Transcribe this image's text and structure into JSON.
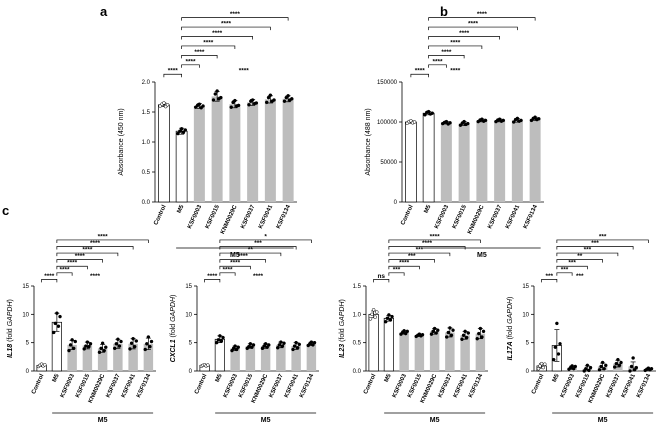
{
  "chart_data": [
    {
      "type": "bar",
      "panel": "a",
      "ylabel": "Absorbance (450 nm)",
      "ylim": [
        0,
        2.0
      ],
      "yticks": [
        0,
        0.5,
        1.0,
        1.5,
        2.0
      ],
      "ytick_labels": [
        "0.0",
        "0.5",
        "1.0",
        "1.5",
        "2.0"
      ],
      "categories": [
        "Control",
        "M5",
        "KSF0003",
        "KSF0015",
        "KNM0029C",
        "KSF0037",
        "KSF0041",
        "KSF0134"
      ],
      "values": [
        1.62,
        1.18,
        1.6,
        1.76,
        1.63,
        1.66,
        1.71,
        1.72
      ],
      "errors": [
        0.03,
        0.05,
        0.04,
        0.08,
        0.06,
        0.05,
        0.06,
        0.05
      ],
      "points": [
        [
          1.6,
          1.63,
          1.65,
          1.59,
          1.62
        ],
        [
          1.14,
          1.18,
          1.22,
          1.16,
          1.2
        ],
        [
          1.58,
          1.61,
          1.63,
          1.57,
          1.6
        ],
        [
          1.7,
          1.8,
          1.85,
          1.72,
          1.74
        ],
        [
          1.58,
          1.66,
          1.69,
          1.6,
          1.61
        ],
        [
          1.62,
          1.68,
          1.7,
          1.64,
          1.65
        ],
        [
          1.66,
          1.74,
          1.78,
          1.68,
          1.7
        ],
        [
          1.68,
          1.74,
          1.77,
          1.7,
          1.72
        ]
      ],
      "group_label": "M5",
      "comparisons": [
        {
          "from": 0,
          "to": 1,
          "label": "****"
        },
        {
          "from": 1,
          "to": 2,
          "label": "****"
        },
        {
          "from": 1,
          "to": 3,
          "label": "****"
        },
        {
          "from": 1,
          "to": 4,
          "label": "****"
        },
        {
          "from": 1,
          "to": 5,
          "label": "****"
        },
        {
          "from": 1,
          "to": 6,
          "label": "****"
        },
        {
          "from": 1,
          "to": 7,
          "label": "****"
        }
      ],
      "extra_label": {
        "text": "****",
        "at": 4.5
      }
    },
    {
      "type": "bar",
      "panel": "b",
      "ylabel": "Absorbance (488 nm)",
      "ylim": [
        0,
        150000
      ],
      "yticks": [
        0,
        50000,
        100000,
        150000
      ],
      "ytick_labels": [
        "0",
        "50000",
        "100000",
        "150000"
      ],
      "categories": [
        "Control",
        "M5",
        "KSF0003",
        "KSF0015",
        "KNM0029C",
        "KSF0037",
        "KSF0041",
        "KSF0134"
      ],
      "values": [
        100000,
        111000,
        99000,
        98000,
        102000,
        102000,
        102000,
        104000
      ],
      "errors": [
        1500,
        2000,
        1500,
        2500,
        1800,
        1800,
        2200,
        2000
      ],
      "points": [
        [
          98500,
          100500,
          101500,
          99000,
          100000
        ],
        [
          109000,
          112000,
          113000,
          110000,
          111000
        ],
        [
          98000,
          99500,
          100500,
          97500,
          99000
        ],
        [
          96000,
          98500,
          100500,
          97000,
          98000
        ],
        [
          100500,
          102500,
          103500,
          101000,
          102000
        ],
        [
          100500,
          102500,
          103500,
          101000,
          102000
        ],
        [
          100000,
          103000,
          104500,
          101000,
          102000
        ],
        [
          102000,
          104500,
          106000,
          103000,
          104000
        ]
      ],
      "group_label": "M5",
      "comparisons": [
        {
          "from": 0,
          "to": 1,
          "label": "****"
        },
        {
          "from": 1,
          "to": 2,
          "label": "****"
        },
        {
          "from": 1,
          "to": 3,
          "label": "****"
        },
        {
          "from": 1,
          "to": 4,
          "label": "****"
        },
        {
          "from": 1,
          "to": 5,
          "label": "****"
        },
        {
          "from": 1,
          "to": 6,
          "label": "****"
        },
        {
          "from": 1,
          "to": 7,
          "label": "****"
        }
      ],
      "extra_label": {
        "text": "****",
        "at": 2.5
      }
    },
    {
      "type": "bar",
      "panel": "c",
      "ylabel_gene": "IL18",
      "ylabel_prefix": "",
      "ylabel_mid": " (fold ",
      "ylabel_ref": "GAPDH",
      "ylabel_suffix": ")",
      "ylim": [
        0,
        15
      ],
      "yticks": [
        0,
        5,
        10,
        15
      ],
      "ytick_labels": [
        "0",
        "5",
        "10",
        "15"
      ],
      "categories": [
        "Control",
        "M5",
        "KSF0003",
        "KSF0015",
        "KNM0029C",
        "KSF0037",
        "KSF0041",
        "KSF0134"
      ],
      "values": [
        1.0,
        8.6,
        4.6,
        4.5,
        4.0,
        4.8,
        4.8,
        4.8
      ],
      "errors": [
        0.2,
        1.6,
        0.8,
        0.6,
        0.7,
        0.8,
        0.9,
        1.0
      ],
      "points": [
        [
          0.8,
          1.0,
          1.2,
          0.9,
          1.1
        ],
        [
          6.8,
          8.4,
          10.2,
          7.9,
          9.6
        ],
        [
          3.6,
          4.6,
          5.5,
          4.0,
          5.2
        ],
        [
          3.9,
          4.4,
          5.1,
          4.3,
          4.8
        ],
        [
          3.3,
          4.0,
          4.9,
          3.6,
          4.2
        ],
        [
          4.0,
          4.8,
          5.6,
          4.4,
          5.2
        ],
        [
          3.9,
          4.9,
          5.7,
          4.3,
          5.3
        ],
        [
          3.8,
          4.8,
          6.0,
          4.3,
          5.2
        ]
      ],
      "group_label": "M5",
      "comparisons": [
        {
          "from": 0,
          "to": 1,
          "label": "****"
        },
        {
          "from": 1,
          "to": 2,
          "label": "****"
        },
        {
          "from": 1,
          "to": 3,
          "label": "****"
        },
        {
          "from": 1,
          "to": 4,
          "label": "****"
        },
        {
          "from": 1,
          "to": 5,
          "label": "****"
        },
        {
          "from": 1,
          "to": 6,
          "label": "****"
        },
        {
          "from": 1,
          "to": 7,
          "label": "****"
        }
      ],
      "extra_label": {
        "text": "****",
        "at": 3.5
      }
    },
    {
      "type": "bar",
      "panel": "c",
      "ylabel_gene": "CXCL1",
      "ylabel_prefix": "",
      "ylabel_mid": " (fold ",
      "ylabel_ref": "GAPDH",
      "ylabel_suffix": ")",
      "ylim": [
        0,
        15
      ],
      "yticks": [
        0,
        5,
        10,
        15
      ],
      "ytick_labels": [
        "0",
        "5",
        "10",
        "15"
      ],
      "categories": [
        "Control",
        "M5",
        "KSF0003",
        "KSF0015",
        "KNM0029C",
        "KSF0037",
        "KSF0041",
        "KSF0134"
      ],
      "values": [
        1.0,
        5.6,
        4.0,
        4.4,
        4.4,
        4.6,
        4.4,
        4.8
      ],
      "errors": [
        0.15,
        0.6,
        0.4,
        0.4,
        0.4,
        0.5,
        0.6,
        0.3
      ],
      "points": [
        [
          0.85,
          1.0,
          1.1,
          0.9,
          1.05
        ],
        [
          5.0,
          5.5,
          6.2,
          5.3,
          5.9
        ],
        [
          3.6,
          4.0,
          4.4,
          3.8,
          4.2
        ],
        [
          4.0,
          4.3,
          4.8,
          4.2,
          4.6
        ],
        [
          4.0,
          4.4,
          4.8,
          4.2,
          4.6
        ],
        [
          4.1,
          4.6,
          5.1,
          4.4,
          4.9
        ],
        [
          3.8,
          4.4,
          5.0,
          4.1,
          4.7
        ],
        [
          4.5,
          4.8,
          5.1,
          4.6,
          5.0
        ]
      ],
      "group_label": "M5",
      "comparisons": [
        {
          "from": 0,
          "to": 1,
          "label": "****"
        },
        {
          "from": 1,
          "to": 2,
          "label": "****"
        },
        {
          "from": 1,
          "to": 3,
          "label": "****"
        },
        {
          "from": 1,
          "to": 4,
          "label": "****"
        },
        {
          "from": 1,
          "to": 5,
          "label": "**"
        },
        {
          "from": 1,
          "to": 6,
          "label": "***"
        },
        {
          "from": 1,
          "to": 7,
          "label": "*"
        }
      ],
      "extra_label": {
        "text": "****",
        "at": 3.5
      }
    },
    {
      "type": "bar",
      "panel": "c",
      "ylabel_gene": "IL23",
      "ylabel_prefix": "",
      "ylabel_mid": " (fold ",
      "ylabel_ref": "GAPDH",
      "ylabel_suffix": ")",
      "ylim": [
        0,
        1.5
      ],
      "yticks": [
        0,
        0.5,
        1.0,
        1.5
      ],
      "ytick_labels": [
        "0.0",
        "0.5",
        "1.0",
        "1.5"
      ],
      "categories": [
        "Control",
        "M5",
        "KSF0003",
        "KSF0015",
        "KNM0029C",
        "KSF0037",
        "KSF0041",
        "KSF0134"
      ],
      "values": [
        1.0,
        0.93,
        0.68,
        0.63,
        0.7,
        0.68,
        0.63,
        0.66
      ],
      "errors": [
        0.06,
        0.05,
        0.03,
        0.02,
        0.05,
        0.08,
        0.07,
        0.09
      ],
      "points": [
        [
          0.92,
          1.0,
          1.08,
          0.95,
          1.04
        ],
        [
          0.87,
          0.93,
          0.99,
          0.9,
          0.96
        ],
        [
          0.65,
          0.68,
          0.71,
          0.66,
          0.7
        ],
        [
          0.61,
          0.63,
          0.65,
          0.62,
          0.64
        ],
        [
          0.65,
          0.7,
          0.75,
          0.67,
          0.72
        ],
        [
          0.6,
          0.68,
          0.76,
          0.63,
          0.72
        ],
        [
          0.56,
          0.63,
          0.7,
          0.59,
          0.67
        ],
        [
          0.57,
          0.66,
          0.75,
          0.6,
          0.7
        ]
      ],
      "group_label": "M5",
      "comparisons": [
        {
          "from": 0,
          "to": 1,
          "label": "ns"
        },
        {
          "from": 1,
          "to": 2,
          "label": "***"
        },
        {
          "from": 1,
          "to": 3,
          "label": "****"
        },
        {
          "from": 1,
          "to": 4,
          "label": "***"
        },
        {
          "from": 1,
          "to": 5,
          "label": "***"
        },
        {
          "from": 1,
          "to": 6,
          "label": "****"
        },
        {
          "from": 1,
          "to": 7,
          "label": "****"
        }
      ],
      "extra_label": null
    },
    {
      "type": "bar",
      "panel": "c",
      "ylabel_gene": "IL17A",
      "ylabel_prefix": "",
      "ylabel_mid": " (fold ",
      "ylabel_ref": "GAPDH",
      "ylabel_suffix": ")",
      "ylim": [
        0,
        15
      ],
      "yticks": [
        0,
        5,
        10,
        15
      ],
      "ytick_labels": [
        "0",
        "5",
        "10",
        "15"
      ],
      "categories": [
        "Control",
        "M5",
        "KSF0003",
        "KSF0015",
        "KNM0029C",
        "KSF0037",
        "KSF0041",
        "KSF0134"
      ],
      "values": [
        0.9,
        4.5,
        0.6,
        0.4,
        0.8,
        1.3,
        0.8,
        0.3
      ],
      "errors": [
        0.4,
        2.8,
        0.3,
        0.5,
        0.6,
        0.6,
        0.8,
        0.2
      ],
      "points": [
        [
          0.4,
          0.9,
          1.3,
          0.6,
          1.2
        ],
        [
          2.0,
          4.2,
          8.4,
          3.0,
          4.8
        ],
        [
          0.3,
          0.6,
          0.9,
          0.4,
          0.8
        ],
        [
          0.0,
          0.4,
          1.0,
          0.1,
          0.6
        ],
        [
          0.2,
          0.8,
          1.5,
          0.4,
          1.0
        ],
        [
          0.7,
          1.3,
          2.0,
          1.0,
          1.5
        ],
        [
          0.0,
          0.8,
          2.3,
          0.2,
          0.6
        ],
        [
          0.1,
          0.3,
          0.5,
          0.2,
          0.4
        ]
      ],
      "group_label": "M5",
      "comparisons": [
        {
          "from": 0,
          "to": 1,
          "label": "***"
        },
        {
          "from": 1,
          "to": 2,
          "label": "***"
        },
        {
          "from": 1,
          "to": 3,
          "label": "***"
        },
        {
          "from": 1,
          "to": 4,
          "label": "**"
        },
        {
          "from": 1,
          "to": 5,
          "label": "***"
        },
        {
          "from": 1,
          "to": 6,
          "label": "***"
        },
        {
          "from": 1,
          "to": 7,
          "label": "***"
        }
      ],
      "extra_label": {
        "text": "***",
        "at": 2.5
      }
    }
  ],
  "colors": {
    "control_fill": "#ffffff",
    "m5_fill": "#ffffff",
    "treated_fill": "#bdbdbd",
    "axis": "#000000"
  }
}
